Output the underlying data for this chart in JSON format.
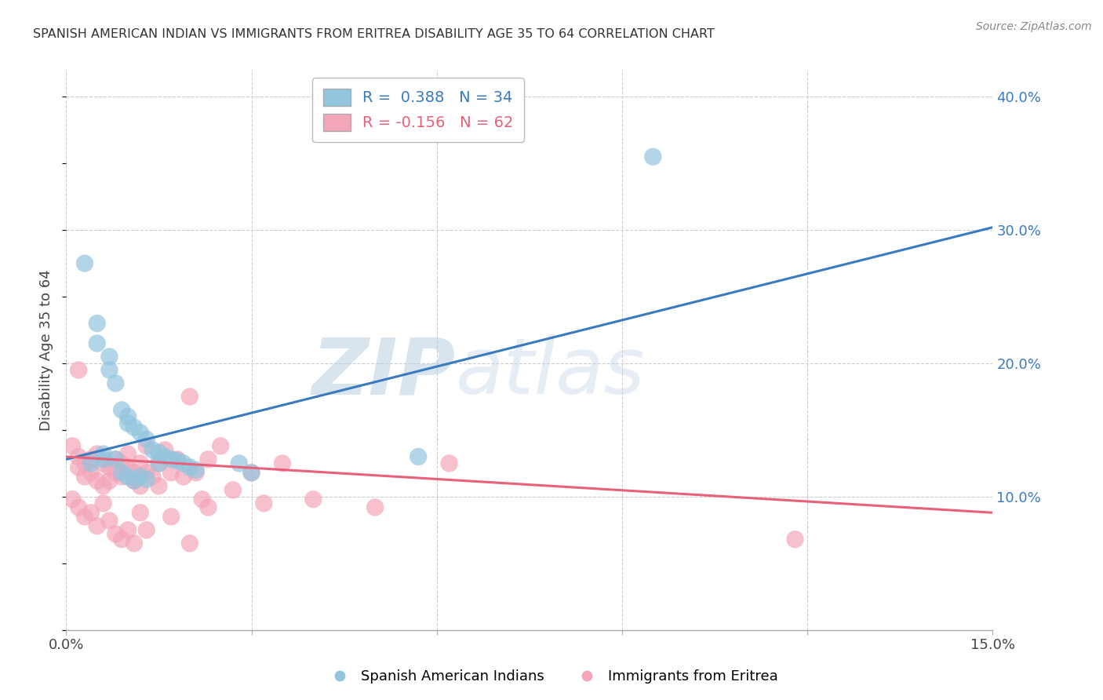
{
  "title": "SPANISH AMERICAN INDIAN VS IMMIGRANTS FROM ERITREA DISABILITY AGE 35 TO 64 CORRELATION CHART",
  "source": "Source: ZipAtlas.com",
  "ylabel": "Disability Age 35 to 64",
  "watermark_zip": "ZIP",
  "watermark_atlas": "atlas",
  "xmin": 0.0,
  "xmax": 0.15,
  "ymin": 0.0,
  "ymax": 0.42,
  "yticks": [
    0.1,
    0.2,
    0.3,
    0.4
  ],
  "xticks": [
    0.0,
    0.03,
    0.06,
    0.09,
    0.12,
    0.15
  ],
  "xtick_labels": [
    "0.0%",
    "",
    "",
    "",
    "",
    "15.0%"
  ],
  "ytick_labels": [
    "10.0%",
    "20.0%",
    "30.0%",
    "40.0%"
  ],
  "blue_R": "0.388",
  "blue_N": "34",
  "pink_R": "-0.156",
  "pink_N": "62",
  "blue_color": "#92c5de",
  "pink_color": "#f4a6b8",
  "blue_line_color": "#3a7abf",
  "pink_line_color": "#e8607a",
  "grid_color": "#cccccc",
  "legend_label_blue": "Spanish American Indians",
  "legend_label_pink": "Immigrants from Eritrea",
  "blue_scatter_x": [
    0.003,
    0.005,
    0.005,
    0.007,
    0.007,
    0.008,
    0.009,
    0.01,
    0.01,
    0.011,
    0.012,
    0.013,
    0.014,
    0.015,
    0.016,
    0.017,
    0.018,
    0.019,
    0.02,
    0.021,
    0.004,
    0.006,
    0.006,
    0.008,
    0.009,
    0.01,
    0.011,
    0.012,
    0.013,
    0.015,
    0.028,
    0.03,
    0.095,
    0.057
  ],
  "blue_scatter_y": [
    0.275,
    0.23,
    0.215,
    0.205,
    0.195,
    0.185,
    0.165,
    0.16,
    0.155,
    0.152,
    0.148,
    0.143,
    0.135,
    0.133,
    0.13,
    0.128,
    0.127,
    0.125,
    0.122,
    0.12,
    0.125,
    0.128,
    0.132,
    0.128,
    0.118,
    0.115,
    0.112,
    0.115,
    0.113,
    0.125,
    0.125,
    0.118,
    0.355,
    0.13
  ],
  "pink_scatter_x": [
    0.001,
    0.002,
    0.002,
    0.003,
    0.003,
    0.004,
    0.004,
    0.005,
    0.005,
    0.006,
    0.006,
    0.007,
    0.007,
    0.008,
    0.008,
    0.009,
    0.009,
    0.01,
    0.01,
    0.011,
    0.011,
    0.012,
    0.012,
    0.013,
    0.013,
    0.014,
    0.015,
    0.016,
    0.017,
    0.018,
    0.019,
    0.02,
    0.021,
    0.022,
    0.023,
    0.025,
    0.027,
    0.03,
    0.032,
    0.035,
    0.001,
    0.002,
    0.003,
    0.004,
    0.005,
    0.006,
    0.007,
    0.008,
    0.009,
    0.01,
    0.011,
    0.012,
    0.013,
    0.015,
    0.017,
    0.02,
    0.023,
    0.04,
    0.05,
    0.062,
    0.002,
    0.118
  ],
  "pink_scatter_y": [
    0.138,
    0.13,
    0.122,
    0.125,
    0.115,
    0.128,
    0.118,
    0.132,
    0.112,
    0.125,
    0.108,
    0.122,
    0.112,
    0.128,
    0.118,
    0.125,
    0.115,
    0.132,
    0.122,
    0.118,
    0.112,
    0.125,
    0.108,
    0.138,
    0.118,
    0.115,
    0.125,
    0.135,
    0.118,
    0.128,
    0.115,
    0.175,
    0.118,
    0.098,
    0.128,
    0.138,
    0.105,
    0.118,
    0.095,
    0.125,
    0.098,
    0.092,
    0.085,
    0.088,
    0.078,
    0.095,
    0.082,
    0.072,
    0.068,
    0.075,
    0.065,
    0.088,
    0.075,
    0.108,
    0.085,
    0.065,
    0.092,
    0.098,
    0.092,
    0.125,
    0.195,
    0.068
  ],
  "blue_line_x": [
    0.0,
    0.15
  ],
  "blue_line_y": [
    0.128,
    0.302
  ],
  "pink_line_x": [
    0.0,
    0.15
  ],
  "pink_line_y": [
    0.13,
    0.088
  ]
}
